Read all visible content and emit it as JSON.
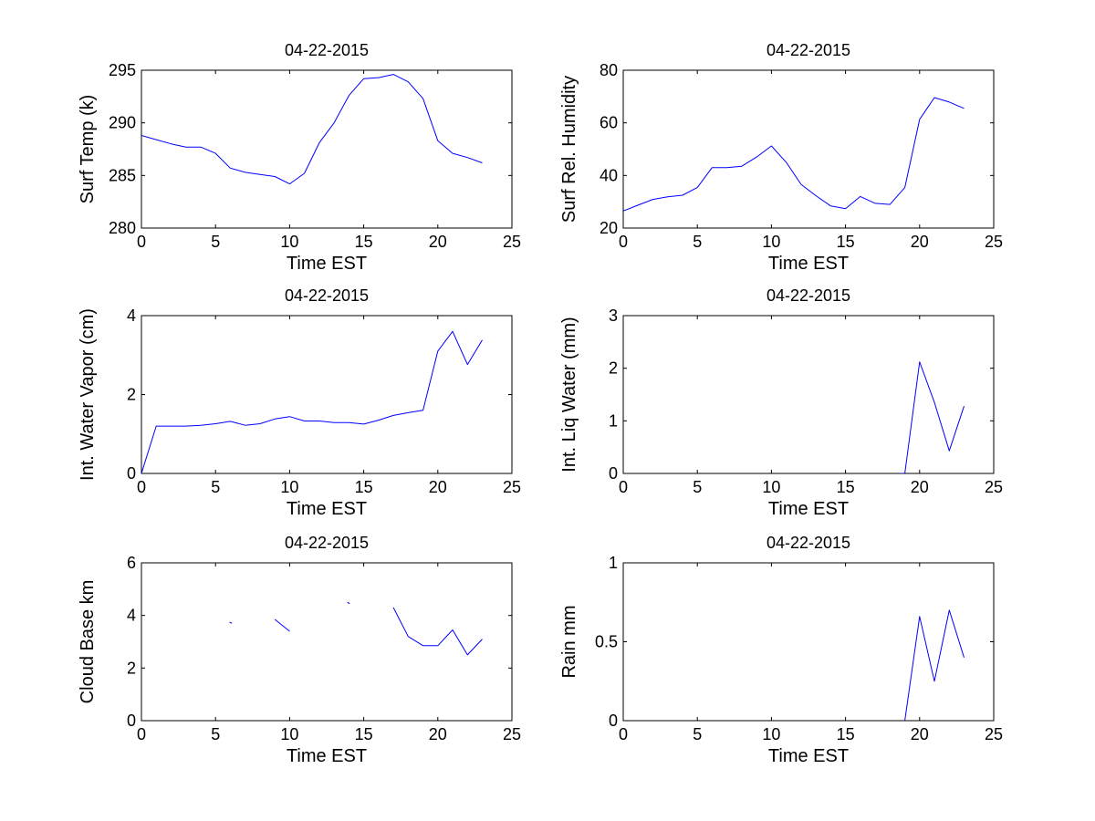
{
  "chart_data": [
    {
      "type": "line",
      "title": "04-22-2015",
      "xlabel": "Time EST",
      "ylabel": "Surf Temp (k)",
      "xlim": [
        0,
        25
      ],
      "ylim": [
        280,
        295
      ],
      "xticks": [
        0,
        5,
        10,
        15,
        20,
        25
      ],
      "yticks": [
        280,
        285,
        290,
        295
      ],
      "color": "#0000ff",
      "series": [
        {
          "name": "Surf Temp",
          "x": [
            0,
            1,
            2,
            3,
            4,
            5,
            6,
            7,
            8,
            9,
            10,
            11,
            12,
            13,
            14,
            15,
            16,
            17,
            18,
            19,
            20,
            21,
            22,
            23
          ],
          "values": [
            288.8,
            288.4,
            288.0,
            287.7,
            287.7,
            287.1,
            285.7,
            285.3,
            285.1,
            284.9,
            284.2,
            285.2,
            288.1,
            290.0,
            292.6,
            294.2,
            294.3,
            294.6,
            293.9,
            292.3,
            288.3,
            287.1,
            286.7,
            286.2
          ]
        }
      ]
    },
    {
      "type": "line",
      "title": "04-22-2015",
      "xlabel": "Time EST",
      "ylabel": "Surf Rel. Humidity",
      "xlim": [
        0,
        25
      ],
      "ylim": [
        20,
        80
      ],
      "xticks": [
        0,
        5,
        10,
        15,
        20,
        25
      ],
      "yticks": [
        20,
        40,
        60,
        80
      ],
      "color": "#0000ff",
      "series": [
        {
          "name": "Surf Rel. Humidity",
          "x": [
            0,
            1,
            2,
            3,
            4,
            5,
            6,
            7,
            8,
            9,
            10,
            11,
            12,
            13,
            14,
            15,
            16,
            17,
            18,
            19,
            20,
            21,
            22,
            23
          ],
          "values": [
            26.5,
            28.7,
            30.9,
            31.9,
            32.5,
            35.4,
            43.0,
            43.0,
            43.5,
            47.0,
            51.2,
            45.0,
            36.6,
            32.3,
            28.4,
            27.4,
            32.0,
            29.4,
            29.0,
            35.4,
            61.3,
            69.6,
            67.9,
            65.5
          ]
        }
      ]
    },
    {
      "type": "line",
      "title": "04-22-2015",
      "xlabel": "Time EST",
      "ylabel": "Int. Water Vapor (cm)",
      "xlim": [
        0,
        25
      ],
      "ylim": [
        0,
        4
      ],
      "xticks": [
        0,
        5,
        10,
        15,
        20,
        25
      ],
      "yticks": [
        0,
        2,
        4
      ],
      "color": "#0000ff",
      "series": [
        {
          "name": "Int. Water Vapor",
          "x": [
            0,
            1,
            2,
            3,
            4,
            5,
            6,
            7,
            8,
            9,
            10,
            11,
            12,
            13,
            14,
            15,
            16,
            17,
            18,
            19,
            20,
            21,
            22,
            23
          ],
          "values": [
            0.0,
            1.2,
            1.2,
            1.2,
            1.22,
            1.26,
            1.32,
            1.22,
            1.26,
            1.38,
            1.44,
            1.33,
            1.33,
            1.29,
            1.29,
            1.25,
            1.35,
            1.47,
            1.54,
            1.6,
            3.1,
            3.6,
            2.76,
            3.38
          ]
        }
      ]
    },
    {
      "type": "line",
      "title": "04-22-2015",
      "xlabel": "Time EST",
      "ylabel": "Int. Liq Water (mm)",
      "xlim": [
        0,
        25
      ],
      "ylim": [
        0,
        3
      ],
      "xticks": [
        0,
        5,
        10,
        15,
        20,
        25
      ],
      "yticks": [
        0,
        1,
        2,
        3
      ],
      "color": "#0000ff",
      "series": [
        {
          "name": "Int. Liq Water",
          "x": [
            18.6,
            19,
            20,
            21,
            22,
            23
          ],
          "values": [
            0.0,
            0.0,
            2.12,
            1.35,
            0.43,
            1.28
          ]
        }
      ]
    },
    {
      "type": "line",
      "title": "04-22-2015",
      "xlabel": "Time EST",
      "ylabel": "Cloud Base km",
      "xlim": [
        0,
        25
      ],
      "ylim": [
        0,
        6
      ],
      "xticks": [
        0,
        5,
        10,
        15,
        20,
        25
      ],
      "yticks": [
        0,
        2,
        4,
        6
      ],
      "color": "#0000ff",
      "segments": [
        {
          "x": [
            5.95,
            6.1
          ],
          "values": [
            3.75,
            3.7
          ]
        },
        {
          "x": [
            9,
            10
          ],
          "values": [
            3.85,
            3.4
          ]
        },
        {
          "x": [
            13.9,
            14.05
          ],
          "values": [
            4.5,
            4.45
          ]
        },
        {
          "x": [
            17,
            18,
            19,
            20,
            21,
            22,
            23
          ],
          "values": [
            4.3,
            3.2,
            2.85,
            2.85,
            3.45,
            2.5,
            3.1
          ]
        }
      ]
    },
    {
      "type": "line",
      "title": "04-22-2015",
      "xlabel": "Time EST",
      "ylabel": "Rain mm",
      "xlim": [
        0,
        25
      ],
      "ylim": [
        0,
        1
      ],
      "xticks": [
        0,
        5,
        10,
        15,
        20,
        25
      ],
      "yticks": [
        0,
        0.5,
        1
      ],
      "ytick_labels": [
        "0",
        "0.5",
        "1"
      ],
      "color": "#0000ff",
      "series": [
        {
          "name": "Rain",
          "x": [
            19,
            20,
            21,
            22,
            23
          ],
          "values": [
            0.0,
            0.66,
            0.25,
            0.7,
            0.4
          ]
        }
      ]
    }
  ]
}
